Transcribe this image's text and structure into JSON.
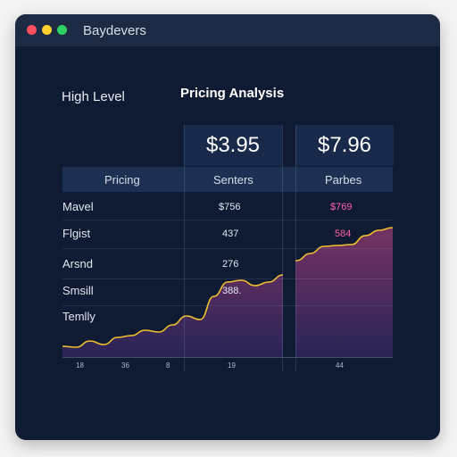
{
  "window": {
    "title": "Baydevers"
  },
  "labels": {
    "high_level": "High Level",
    "pricing_analysis": "Pricing Analysis"
  },
  "price_cards": [
    "$3.95",
    "$7.96"
  ],
  "table": {
    "headers": [
      "Pricing",
      "Senters",
      "Parbes"
    ],
    "rows": [
      {
        "label": "Mavel",
        "col2": "$756",
        "col3": "$769"
      },
      {
        "label": "Flgist",
        "col2": "437",
        "col3": "584"
      },
      {
        "label": "Arsnd",
        "col2": "276",
        "col3": ""
      },
      {
        "label": "Smsill",
        "col2": "388.",
        "col3": ""
      },
      {
        "label": "Temlly",
        "col2": "",
        "col3": ""
      }
    ]
  },
  "ticks": [
    "18",
    "36",
    "8",
    "19",
    "44"
  ],
  "colors": {
    "background": "#0f1b33",
    "titlebar": "#1c2a44",
    "header_row": "#1d3052",
    "line": "#f2c12e",
    "fill_top": "#7a3464",
    "fill_bottom": "#2b2459",
    "pink_value": "#ff5fa8"
  },
  "chart_data": {
    "type": "area",
    "series": [
      {
        "values": [
          12,
          11,
          18,
          14,
          22,
          24,
          30,
          28,
          36,
          46,
          42,
          68,
          84,
          86,
          80,
          84,
          92,
          108,
          116,
          124,
          125,
          126,
          136,
          142,
          145
        ]
      }
    ],
    "x_tick_labels": [
      "18",
      "36",
      "8",
      "19",
      "44"
    ],
    "ylim": [
      0,
      160
    ]
  }
}
